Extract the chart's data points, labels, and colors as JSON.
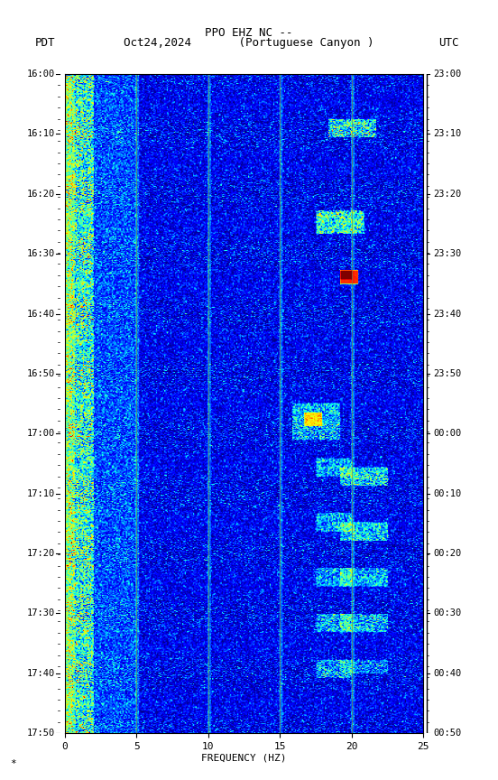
{
  "title_line1": "PPO EHZ NC --",
  "title_line2": "Oct24,2024       (Portuguese Canyon )",
  "left_label": "PDT",
  "right_label": "UTC",
  "xlabel": "FREQUENCY (HZ)",
  "freq_min": 0,
  "freq_max": 25,
  "freq_ticks": [
    0,
    5,
    10,
    15,
    20,
    25
  ],
  "freq_tick_labels": [
    "0",
    "5",
    "10",
    "15",
    "20",
    "25"
  ],
  "freq_gridlines": [
    5,
    10,
    15,
    20
  ],
  "time_left_labels": [
    "16:00",
    "16:10",
    "16:20",
    "16:30",
    "16:40",
    "16:50",
    "17:00",
    "17:10",
    "17:20",
    "17:30",
    "17:40",
    "17:50"
  ],
  "time_right_labels": [
    "23:00",
    "23:10",
    "23:20",
    "23:30",
    "23:40",
    "23:50",
    "00:00",
    "00:10",
    "00:20",
    "00:30",
    "00:40",
    "00:50"
  ],
  "time_rows": 12,
  "time_minutes_per_row": 10,
  "background_color": "#ffffff",
  "fig_width": 5.52,
  "fig_height": 8.64,
  "dpi": 100,
  "bottom_note": "*"
}
